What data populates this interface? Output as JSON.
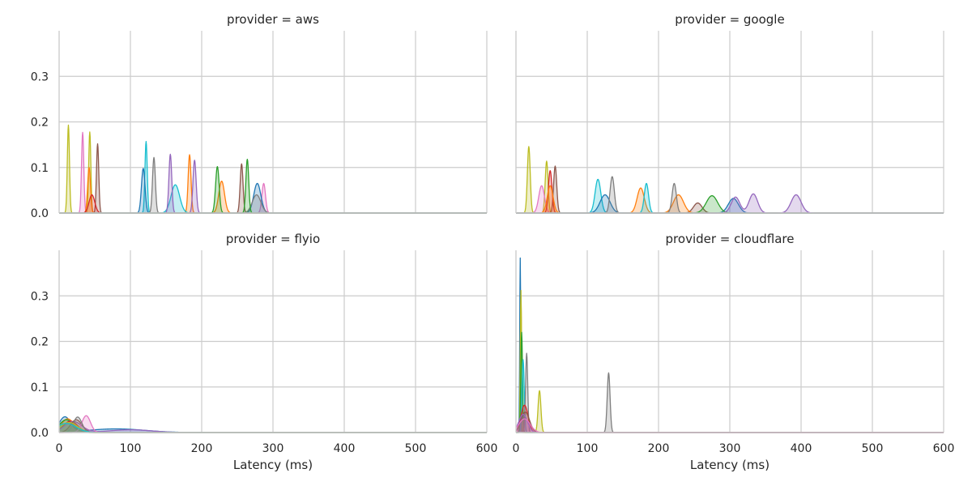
{
  "chart_data": [
    {
      "type": "area",
      "title": "provider = aws",
      "xlabel": "",
      "ylabel": "",
      "xlim": [
        0,
        600
      ],
      "ylim": [
        0,
        0.4
      ],
      "xticks": [
        0,
        100,
        200,
        300,
        400,
        500,
        600
      ],
      "yticks": [
        0.0,
        0.1,
        0.2,
        0.3
      ],
      "grid": true,
      "series": [
        {
          "color": "#bcbd22",
          "peaks": [
            {
              "x": 13,
              "y": 0.193,
              "w": 1.5
            },
            {
              "x": 43,
              "y": 0.178,
              "w": 1.5
            }
          ]
        },
        {
          "color": "#e377c2",
          "peaks": [
            {
              "x": 33,
              "y": 0.177,
              "w": 1.6
            },
            {
              "x": 287,
              "y": 0.065,
              "w": 2.5
            }
          ]
        },
        {
          "color": "#8c564b",
          "peaks": [
            {
              "x": 54,
              "y": 0.152,
              "w": 1.6
            },
            {
              "x": 256,
              "y": 0.108,
              "w": 2.0
            }
          ]
        },
        {
          "color": "#ff7f0e",
          "peaks": [
            {
              "x": 42,
              "y": 0.1,
              "w": 2.0
            },
            {
              "x": 183,
              "y": 0.128,
              "w": 2.0
            },
            {
              "x": 228,
              "y": 0.07,
              "w": 4.0
            }
          ]
        },
        {
          "color": "#d62728",
          "peaks": [
            {
              "x": 46,
              "y": 0.04,
              "w": 4.0
            }
          ]
        },
        {
          "color": "#17becf",
          "peaks": [
            {
              "x": 122,
              "y": 0.157,
              "w": 1.6
            },
            {
              "x": 163,
              "y": 0.062,
              "w": 6.0
            }
          ]
        },
        {
          "color": "#1f77b4",
          "peaks": [
            {
              "x": 118,
              "y": 0.098,
              "w": 2.5
            },
            {
              "x": 278,
              "y": 0.065,
              "w": 5.0
            }
          ]
        },
        {
          "color": "#7f7f7f",
          "peaks": [
            {
              "x": 133,
              "y": 0.122,
              "w": 2.0
            },
            {
              "x": 277,
              "y": 0.04,
              "w": 6.0
            }
          ]
        },
        {
          "color": "#9467bd",
          "peaks": [
            {
              "x": 156,
              "y": 0.129,
              "w": 2.0
            },
            {
              "x": 190,
              "y": 0.116,
              "w": 2.2
            }
          ]
        },
        {
          "color": "#2ca02c",
          "peaks": [
            {
              "x": 222,
              "y": 0.102,
              "w": 2.5
            },
            {
              "x": 264,
              "y": 0.118,
              "w": 2.0
            }
          ]
        }
      ]
    },
    {
      "type": "area",
      "title": "provider = google",
      "xlabel": "",
      "ylabel": "",
      "xlim": [
        0,
        600
      ],
      "ylim": [
        0,
        0.4
      ],
      "xticks": [
        0,
        100,
        200,
        300,
        400,
        500,
        600
      ],
      "yticks": [
        0.0,
        0.1,
        0.2,
        0.3
      ],
      "grid": true,
      "series": [
        {
          "color": "#bcbd22",
          "peaks": [
            {
              "x": 18,
              "y": 0.146,
              "w": 2.0
            },
            {
              "x": 43,
              "y": 0.114,
              "w": 2.0
            }
          ]
        },
        {
          "color": "#e377c2",
          "peaks": [
            {
              "x": 36,
              "y": 0.06,
              "w": 4.0
            }
          ]
        },
        {
          "color": "#8c564b",
          "peaks": [
            {
              "x": 55,
              "y": 0.103,
              "w": 2.2
            },
            {
              "x": 255,
              "y": 0.022,
              "w": 6.0
            }
          ]
        },
        {
          "color": "#d62728",
          "peaks": [
            {
              "x": 48,
              "y": 0.093,
              "w": 2.5
            }
          ]
        },
        {
          "color": "#ff7f0e",
          "peaks": [
            {
              "x": 48,
              "y": 0.06,
              "w": 4.0
            },
            {
              "x": 175,
              "y": 0.055,
              "w": 5.0
            },
            {
              "x": 228,
              "y": 0.04,
              "w": 7.0
            }
          ]
        },
        {
          "color": "#17becf",
          "peaks": [
            {
              "x": 115,
              "y": 0.074,
              "w": 4.0
            },
            {
              "x": 183,
              "y": 0.065,
              "w": 3.0
            }
          ]
        },
        {
          "color": "#1f77b4",
          "peaks": [
            {
              "x": 125,
              "y": 0.04,
              "w": 7.0
            },
            {
              "x": 305,
              "y": 0.032,
              "w": 7.0
            }
          ]
        },
        {
          "color": "#7f7f7f",
          "peaks": [
            {
              "x": 135,
              "y": 0.08,
              "w": 3.0
            },
            {
              "x": 222,
              "y": 0.065,
              "w": 3.0
            }
          ]
        },
        {
          "color": "#2ca02c",
          "peaks": [
            {
              "x": 275,
              "y": 0.038,
              "w": 8.0
            }
          ]
        },
        {
          "color": "#9467bd",
          "peaks": [
            {
              "x": 308,
              "y": 0.035,
              "w": 6.0
            },
            {
              "x": 333,
              "y": 0.042,
              "w": 6.0
            },
            {
              "x": 393,
              "y": 0.04,
              "w": 7.0
            }
          ]
        }
      ]
    },
    {
      "type": "area",
      "title": "provider = flyio",
      "xlabel": "Latency (ms)",
      "ylabel": "",
      "xlim": [
        0,
        600
      ],
      "ylim": [
        0,
        0.4
      ],
      "xticks": [
        0,
        100,
        200,
        300,
        400,
        500,
        600
      ],
      "yticks": [
        0.0,
        0.1,
        0.2,
        0.3
      ],
      "grid": true,
      "series": [
        {
          "color": "#1f77b4",
          "peaks": [
            {
              "x": 8,
              "y": 0.033,
              "w": 8.0
            },
            {
              "x": 80,
              "y": 0.008,
              "w": 40.0
            }
          ]
        },
        {
          "color": "#ff7f0e",
          "peaks": [
            {
              "x": 12,
              "y": 0.03,
              "w": 9.0
            }
          ]
        },
        {
          "color": "#2ca02c",
          "peaks": [
            {
              "x": 10,
              "y": 0.028,
              "w": 10.0
            }
          ]
        },
        {
          "color": "#d62728",
          "peaks": [
            {
              "x": 16,
              "y": 0.025,
              "w": 10.0
            }
          ]
        },
        {
          "color": "#9467bd",
          "peaks": [
            {
              "x": 20,
              "y": 0.024,
              "w": 12.0
            },
            {
              "x": 100,
              "y": 0.006,
              "w": 30.0
            }
          ]
        },
        {
          "color": "#8c564b",
          "peaks": [
            {
              "x": 24,
              "y": 0.028,
              "w": 8.0
            }
          ]
        },
        {
          "color": "#e377c2",
          "peaks": [
            {
              "x": 38,
              "y": 0.037,
              "w": 6.0
            }
          ]
        },
        {
          "color": "#7f7f7f",
          "peaks": [
            {
              "x": 26,
              "y": 0.034,
              "w": 6.0
            }
          ]
        },
        {
          "color": "#bcbd22",
          "peaks": [
            {
              "x": 14,
              "y": 0.022,
              "w": 12.0
            }
          ]
        },
        {
          "color": "#17becf",
          "peaks": [
            {
              "x": 10,
              "y": 0.02,
              "w": 14.0
            }
          ]
        }
      ]
    },
    {
      "type": "area",
      "title": "provider = cloudflare",
      "xlabel": "Latency (ms)",
      "ylabel": "",
      "xlim": [
        0,
        600
      ],
      "ylim": [
        0,
        0.4
      ],
      "xticks": [
        0,
        100,
        200,
        300,
        400,
        500,
        600
      ],
      "yticks": [
        0.0,
        0.1,
        0.2,
        0.3
      ],
      "grid": true,
      "series": [
        {
          "color": "#1f77b4",
          "peaks": [
            {
              "x": 6,
              "y": 0.383,
              "w": 0.7
            }
          ]
        },
        {
          "color": "#ff7f0e",
          "peaks": [
            {
              "x": 7,
              "y": 0.3,
              "w": 0.8
            }
          ]
        },
        {
          "color": "#bcbd22",
          "peaks": [
            {
              "x": 7,
              "y": 0.312,
              "w": 0.9
            },
            {
              "x": 33,
              "y": 0.092,
              "w": 2.0
            }
          ]
        },
        {
          "color": "#2ca02c",
          "peaks": [
            {
              "x": 8,
              "y": 0.22,
              "w": 1.2
            }
          ]
        },
        {
          "color": "#17becf",
          "peaks": [
            {
              "x": 10,
              "y": 0.16,
              "w": 1.6
            }
          ]
        },
        {
          "color": "#7f7f7f",
          "peaks": [
            {
              "x": 15,
              "y": 0.174,
              "w": 1.5
            },
            {
              "x": 130,
              "y": 0.131,
              "w": 2.0
            }
          ]
        },
        {
          "color": "#d62728",
          "peaks": [
            {
              "x": 12,
              "y": 0.06,
              "w": 5.0
            }
          ]
        },
        {
          "color": "#8c564b",
          "peaks": [
            {
              "x": 13,
              "y": 0.045,
              "w": 6.0
            }
          ]
        },
        {
          "color": "#9467bd",
          "peaks": [
            {
              "x": 10,
              "y": 0.04,
              "w": 6.0
            }
          ]
        },
        {
          "color": "#e377c2",
          "peaks": [
            {
              "x": 12,
              "y": 0.03,
              "w": 8.0
            }
          ]
        }
      ]
    }
  ]
}
